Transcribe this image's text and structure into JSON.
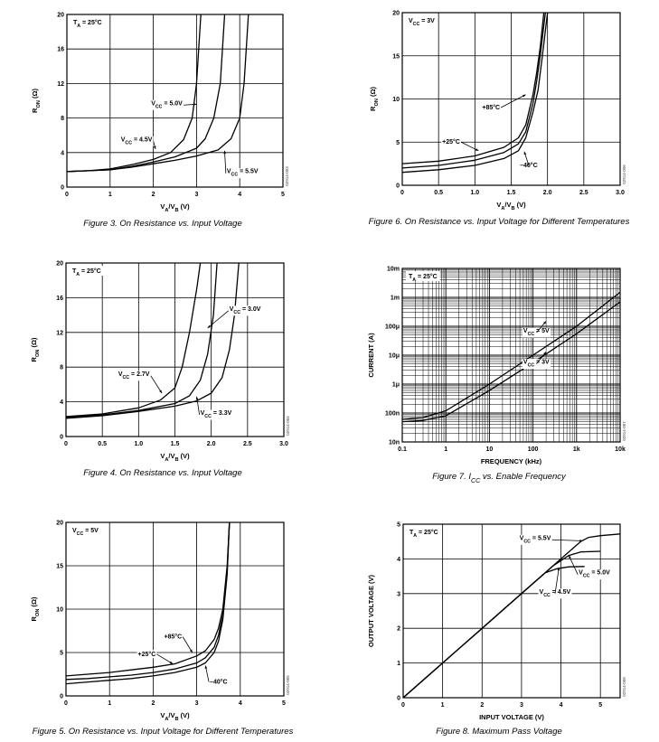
{
  "chart_data": [
    {
      "id": "fig3",
      "type": "line",
      "caption": "Figure 3. On Resistance vs. Input Voltage",
      "code": "02914-003",
      "xlabel": [
        "V",
        "A",
        "/V",
        "B",
        " (V)"
      ],
      "ylabel": [
        "R",
        "ON",
        " (Ω)"
      ],
      "xlim": [
        0,
        5
      ],
      "ylim": [
        0,
        20
      ],
      "xticks": [
        0,
        1,
        2,
        3,
        4,
        5
      ],
      "yticks": [
        0,
        4,
        8,
        12,
        16,
        20
      ],
      "xtick_labels": [
        "0",
        "1",
        "2",
        "3",
        "4",
        "5"
      ],
      "ytick_labels": [
        "0",
        "4",
        "8",
        "12",
        "16",
        "20"
      ],
      "grid": true,
      "condition": [
        "T",
        "A",
        " = 25°C"
      ],
      "series": [
        {
          "name": "VCC = 4.5V",
          "x": [
            0,
            0.5,
            1,
            1.5,
            2,
            2.4,
            2.7,
            2.9,
            3.0,
            3.1
          ],
          "y": [
            1.8,
            1.9,
            2.1,
            2.6,
            3.2,
            4.0,
            5.5,
            8.0,
            12.0,
            20
          ]
        },
        {
          "name": "VCC = 5.0V",
          "x": [
            0,
            0.5,
            1,
            1.5,
            2,
            2.5,
            3,
            3.2,
            3.4,
            3.55,
            3.65
          ],
          "y": [
            1.8,
            1.9,
            2.0,
            2.4,
            2.9,
            3.5,
            4.5,
            5.6,
            8.0,
            12.0,
            20
          ]
        },
        {
          "name": "VCC = 5.5V",
          "x": [
            0,
            0.5,
            1,
            1.5,
            2,
            2.5,
            3,
            3.5,
            3.8,
            4.0,
            4.1,
            4.2
          ],
          "y": [
            1.8,
            1.9,
            2.0,
            2.3,
            2.7,
            3.1,
            3.6,
            4.3,
            5.6,
            8.0,
            12.0,
            20
          ]
        }
      ],
      "annotations": [
        {
          "text": [
            "V",
            "CC",
            " = 5.0V"
          ],
          "x": 1.95,
          "y": 9.5
        },
        {
          "text": [
            "V",
            "CC",
            " = 4.5V"
          ],
          "x": 1.25,
          "y": 5.3
        },
        {
          "text": [
            "V",
            "CC",
            " = 5.5V"
          ],
          "x": 3.7,
          "y": 1.6
        }
      ]
    },
    {
      "id": "fig6",
      "type": "line",
      "caption": "Figure 6. On Resistance vs. Input Voltage for Different Temperatures",
      "code": "02914-006",
      "xlabel": [
        "V",
        "A",
        "/V",
        "B",
        " (V)"
      ],
      "ylabel": [
        "R",
        "ON",
        " (Ω)"
      ],
      "xlim": [
        0,
        3
      ],
      "ylim": [
        0,
        20
      ],
      "xticks": [
        0,
        0.5,
        1.0,
        1.5,
        2.0,
        2.5,
        3.0
      ],
      "yticks": [
        0,
        5,
        10,
        15,
        20
      ],
      "xtick_labels": [
        "0",
        "0.5",
        "1.0",
        "1.5",
        "2.0",
        "2.5",
        "3.0"
      ],
      "ytick_labels": [
        "0",
        "5",
        "10",
        "15",
        "20"
      ],
      "grid": true,
      "condition": [
        "V",
        "CC",
        " = 3V"
      ],
      "series": [
        {
          "name": "+85°C",
          "x": [
            0,
            0.5,
            1.0,
            1.4,
            1.6,
            1.7,
            1.8,
            1.85,
            1.9,
            1.95
          ],
          "y": [
            2.5,
            2.8,
            3.4,
            4.4,
            5.5,
            7.0,
            10.5,
            13,
            16,
            20
          ]
        },
        {
          "name": "+25°C",
          "x": [
            0,
            0.5,
            1.0,
            1.4,
            1.6,
            1.7,
            1.8,
            1.85,
            1.9,
            1.97
          ],
          "y": [
            2.0,
            2.3,
            2.9,
            3.8,
            4.8,
            6.2,
            9.5,
            12,
            15,
            20
          ]
        },
        {
          "name": "-40°C",
          "x": [
            0,
            0.5,
            1.0,
            1.4,
            1.6,
            1.7,
            1.8,
            1.87,
            1.93,
            2.0
          ],
          "y": [
            1.5,
            1.8,
            2.3,
            3.1,
            4.0,
            5.5,
            8.5,
            11,
            15,
            20
          ]
        }
      ],
      "annotations": [
        {
          "text": [
            "+85°C"
          ],
          "x": 1.1,
          "y": 8.8
        },
        {
          "text": [
            "+25°C"
          ],
          "x": 0.55,
          "y": 4.8
        },
        {
          "text": [
            "–40°C"
          ],
          "x": 1.62,
          "y": 2.1
        }
      ]
    },
    {
      "id": "fig4",
      "type": "line",
      "caption": "Figure 4. On Resistance vs. Input Voltage",
      "code": "02914-004",
      "xlabel": [
        "V",
        "A",
        "/V",
        "B",
        " (V)"
      ],
      "ylabel": [
        "R",
        "ON",
        " (Ω)"
      ],
      "xlim": [
        0,
        3
      ],
      "ylim": [
        0,
        20
      ],
      "xticks": [
        0,
        0.5,
        1.0,
        1.5,
        2.0,
        2.5,
        3.0
      ],
      "yticks": [
        0,
        4,
        8,
        12,
        16,
        20
      ],
      "xtick_labels": [
        "0",
        "0.5",
        "1.0",
        "1.5",
        "2.0",
        "2.5",
        "3.0"
      ],
      "ytick_labels": [
        "0",
        "4",
        "8",
        "12",
        "16",
        "20"
      ],
      "grid": true,
      "condition": [
        "T",
        "A",
        " = 25°C"
      ],
      "series": [
        {
          "name": "VCC = 2.7V",
          "x": [
            0,
            0.5,
            1.0,
            1.3,
            1.5,
            1.6,
            1.7,
            1.8,
            1.85
          ],
          "y": [
            2.3,
            2.6,
            3.3,
            4.2,
            5.6,
            8.0,
            12.0,
            17,
            20
          ]
        },
        {
          "name": "VCC = 3.0V",
          "x": [
            0,
            0.5,
            1.0,
            1.5,
            1.7,
            1.85,
            1.95,
            2.03,
            2.08
          ],
          "y": [
            2.2,
            2.5,
            3.0,
            3.8,
            4.7,
            6.5,
            9.5,
            14,
            20
          ]
        },
        {
          "name": "VCC = 3.3V",
          "x": [
            0,
            0.5,
            1.0,
            1.5,
            1.8,
            2.0,
            2.15,
            2.25,
            2.32,
            2.38
          ],
          "y": [
            2.1,
            2.4,
            2.9,
            3.5,
            4.1,
            5.0,
            6.8,
            10.0,
            14.0,
            20
          ]
        }
      ],
      "annotations": [
        {
          "text": [
            "V",
            "CC",
            " = 3.0V"
          ],
          "x": 2.25,
          "y": 14.5
        },
        {
          "text": [
            "V",
            "CC",
            " = 2.7V"
          ],
          "x": 0.72,
          "y": 7.0
        },
        {
          "text": [
            "V",
            "CC",
            " = 3.3V"
          ],
          "x": 1.85,
          "y": 2.5
        }
      ]
    },
    {
      "id": "fig7",
      "type": "line",
      "caption": [
        "Figure 7. I",
        "CC",
        " vs. Enable Frequency"
      ],
      "code": "02914-007",
      "xlabel": [
        "FREQUENCY (kHz)"
      ],
      "ylabel": [
        "CURRENT (A)"
      ],
      "xscale": "log",
      "yscale": "log",
      "xlim": [
        0.1,
        10000
      ],
      "ylim": [
        1e-08,
        0.01
      ],
      "xticks": [
        0.1,
        1,
        10,
        100,
        1000,
        10000
      ],
      "yticks": [
        1e-08,
        1e-07,
        1e-06,
        1e-05,
        0.0001,
        0.001,
        0.01
      ],
      "xtick_labels": [
        "0.1",
        "1",
        "10",
        "100",
        "1k",
        "10k"
      ],
      "ytick_labels": [
        "10n",
        "100n",
        "1μ",
        "10μ",
        "100μ",
        "1m",
        "10m"
      ],
      "grid": true,
      "condition": [
        "T",
        "A",
        " = 25°C"
      ],
      "series": [
        {
          "name": "VCC = 5V",
          "x": [
            0.1,
            0.3,
            1,
            10,
            100,
            1000,
            10000
          ],
          "y": [
            6e-08,
            7e-08,
            1.2e-07,
            1e-06,
            1e-05,
            0.0001,
            0.0015
          ]
        },
        {
          "name": "VCC = 3V",
          "x": [
            0.1,
            0.3,
            1,
            10,
            100,
            1000,
            10000
          ],
          "y": [
            5e-08,
            5.5e-08,
            8e-08,
            6e-07,
            5.5e-06,
            5.5e-05,
            0.0007
          ]
        }
      ],
      "annotations": [
        {
          "text": [
            "V",
            "CC",
            " = 5V"
          ],
          "x": 60,
          "y": 6e-05
        },
        {
          "text": [
            "V",
            "CC",
            " = 3V"
          ],
          "x": 60,
          "y": 5e-06
        }
      ]
    },
    {
      "id": "fig5",
      "type": "line",
      "caption": "Figure 5. On Resistance vs. Input Voltage for Different Temperatures",
      "code": "02914-005",
      "xlabel": [
        "V",
        "A",
        "/V",
        "B",
        " (V)"
      ],
      "ylabel": [
        "R",
        "ON",
        " (Ω)"
      ],
      "xlim": [
        0,
        5
      ],
      "ylim": [
        0,
        20
      ],
      "xticks": [
        0,
        1,
        2,
        3,
        4,
        5
      ],
      "yticks": [
        0,
        5,
        10,
        15,
        20
      ],
      "xtick_labels": [
        "0",
        "1",
        "2",
        "3",
        "4",
        "5"
      ],
      "ytick_labels": [
        "0",
        "5",
        "10",
        "15",
        "20"
      ],
      "grid": true,
      "condition": [
        "V",
        "CC",
        " = 5V"
      ],
      "series": [
        {
          "name": "+85°C",
          "x": [
            0,
            0.5,
            1,
            1.5,
            2,
            2.5,
            3,
            3.2,
            3.4,
            3.5,
            3.6,
            3.7,
            3.75
          ],
          "y": [
            2.3,
            2.5,
            2.7,
            3.0,
            3.3,
            3.7,
            4.6,
            5.2,
            6.5,
            7.8,
            10.0,
            15.0,
            20
          ]
        },
        {
          "name": "+25°C",
          "x": [
            0,
            0.5,
            1,
            1.5,
            2,
            2.5,
            3,
            3.2,
            3.4,
            3.5,
            3.6,
            3.7,
            3.75
          ],
          "y": [
            1.9,
            2.0,
            2.2,
            2.4,
            2.7,
            3.1,
            3.8,
            4.4,
            5.6,
            7.0,
            9.3,
            14.5,
            20
          ]
        },
        {
          "name": "-40°C",
          "x": [
            0,
            0.5,
            1,
            1.5,
            2,
            2.5,
            3,
            3.2,
            3.4,
            3.5,
            3.6,
            3.7,
            3.75
          ],
          "y": [
            1.4,
            1.6,
            1.8,
            2.0,
            2.3,
            2.7,
            3.3,
            3.8,
            5.0,
            6.3,
            8.8,
            14.0,
            20
          ]
        }
      ],
      "annotations": [
        {
          "text": [
            "+85°C"
          ],
          "x": 2.25,
          "y": 6.6
        },
        {
          "text": [
            "+25°C"
          ],
          "x": 1.65,
          "y": 4.6
        },
        {
          "text": [
            "–40°C"
          ],
          "x": 3.3,
          "y": 1.4
        }
      ]
    },
    {
      "id": "fig8",
      "type": "line",
      "caption": "Figure 8. Maximum Pass Voltage",
      "code": "02914-008",
      "xlabel": [
        "INPUT VOLTAGE (V)"
      ],
      "ylabel": [
        "OUTPUT VOLTAGE (V)"
      ],
      "xlim": [
        0,
        5.5
      ],
      "ylim": [
        0,
        5
      ],
      "xticks": [
        0,
        1,
        2,
        3,
        4,
        5
      ],
      "yticks": [
        0,
        1,
        2,
        3,
        4,
        5
      ],
      "xtick_labels": [
        "0",
        "1",
        "2",
        "3",
        "4",
        "5"
      ],
      "ytick_labels": [
        "0",
        "1",
        "2",
        "3",
        "4",
        "5"
      ],
      "grid": true,
      "condition": [
        "T",
        "A",
        " = 25°C"
      ],
      "series": [
        {
          "name": "VCC = 5.5V",
          "x": [
            0,
            1,
            2,
            3,
            4,
            4.3,
            4.5,
            4.7,
            5,
            5.5
          ],
          "y": [
            0,
            1,
            2,
            3,
            4,
            4.3,
            4.5,
            4.62,
            4.67,
            4.72
          ]
        },
        {
          "name": "VCC = 5.0V",
          "x": [
            0,
            1,
            2,
            3,
            3.8,
            4.0,
            4.2,
            4.5,
            5.0
          ],
          "y": [
            0,
            1,
            2,
            3,
            3.8,
            3.95,
            4.1,
            4.2,
            4.22
          ]
        },
        {
          "name": "VCC = 4.5V",
          "x": [
            0,
            1,
            2,
            3,
            3.6,
            3.9,
            4.2,
            4.6
          ],
          "y": [
            0,
            1,
            2,
            3,
            3.6,
            3.72,
            3.77,
            3.78
          ]
        }
      ],
      "annotations": [
        {
          "text": [
            "V",
            "CC",
            " = 5.5V"
          ],
          "x": 2.95,
          "y": 4.55
        },
        {
          "text": [
            "V",
            "CC",
            " = 5.0V"
          ],
          "x": 4.45,
          "y": 3.55
        },
        {
          "text": [
            "V",
            "CC",
            " = 4.5V"
          ],
          "x": 3.45,
          "y": 3.0
        }
      ]
    }
  ]
}
